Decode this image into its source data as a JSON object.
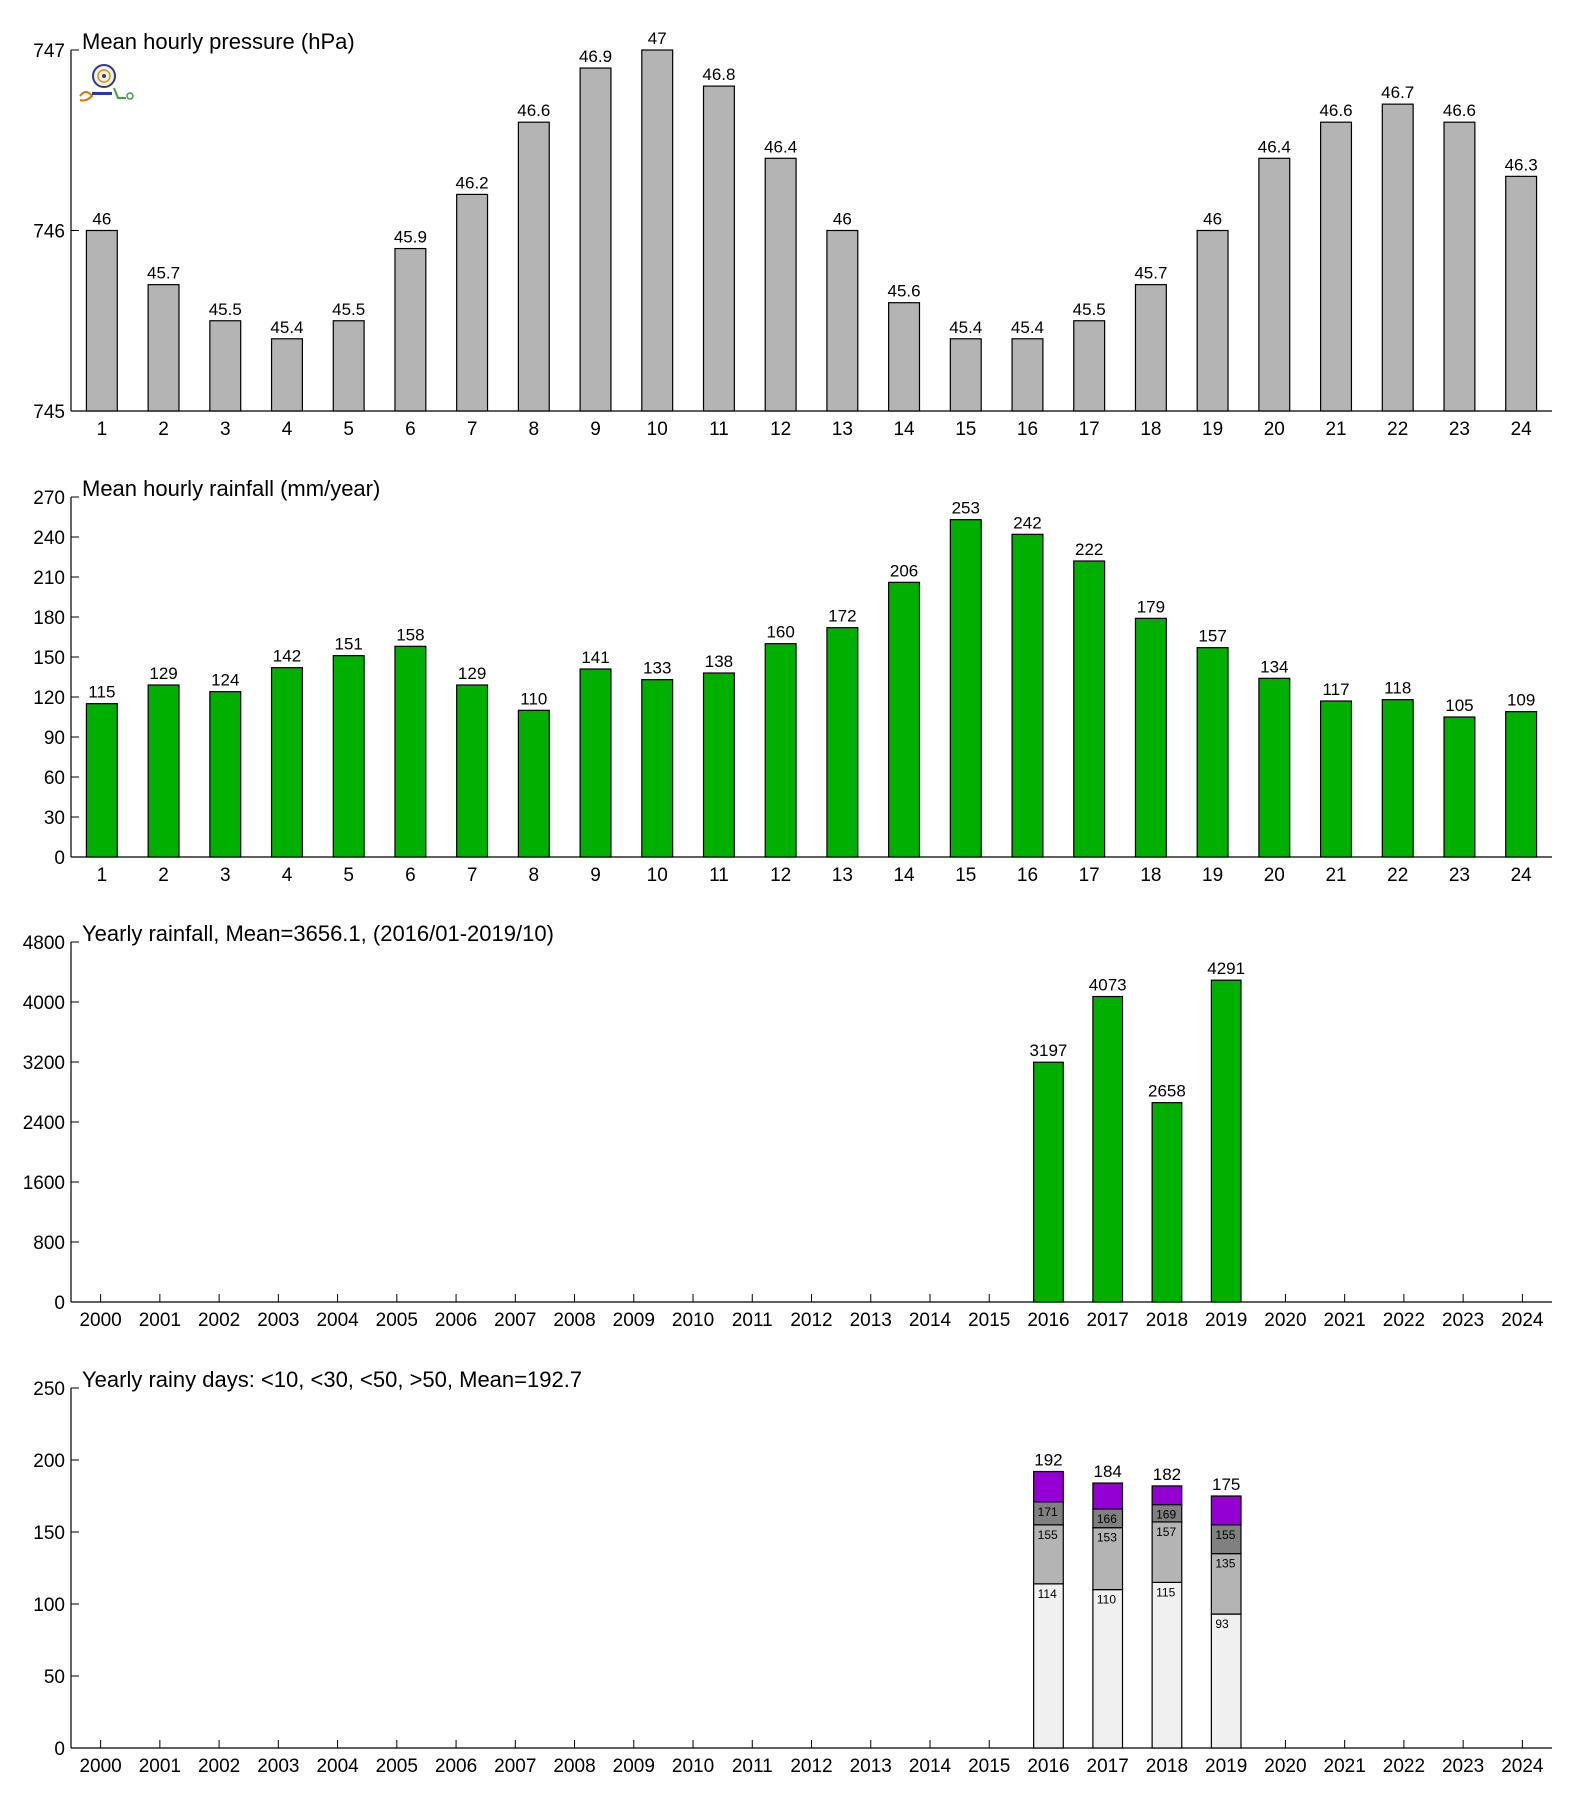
{
  "chart_data": [
    {
      "type": "bar",
      "title": "Mean hourly pressure (hPa)",
      "categories": [
        "1",
        "2",
        "3",
        "4",
        "5",
        "6",
        "7",
        "8",
        "9",
        "10",
        "11",
        "12",
        "13",
        "14",
        "15",
        "16",
        "17",
        "18",
        "19",
        "20",
        "21",
        "22",
        "23",
        "24"
      ],
      "values": [
        746.0,
        745.7,
        745.5,
        745.4,
        745.5,
        745.9,
        746.2,
        746.6,
        746.9,
        747.0,
        746.8,
        746.4,
        746.0,
        745.6,
        745.4,
        745.4,
        745.5,
        745.7,
        746.0,
        746.4,
        746.6,
        746.7,
        746.6,
        746.3
      ],
      "value_labels": [
        "46",
        "45.7",
        "45.5",
        "45.4",
        "45.5",
        "45.9",
        "46.2",
        "46.6",
        "46.9",
        "47",
        "46.8",
        "46.4",
        "46",
        "45.6",
        "45.4",
        "45.4",
        "45.5",
        "45.7",
        "46",
        "46.4",
        "46.6",
        "46.7",
        "46.6",
        "46.3"
      ],
      "ylim": [
        745,
        747
      ],
      "yticks": [
        745,
        746,
        747
      ],
      "color": "#b4b4b4"
    },
    {
      "type": "bar",
      "title": "Mean hourly rainfall (mm/year)",
      "categories": [
        "1",
        "2",
        "3",
        "4",
        "5",
        "6",
        "7",
        "8",
        "9",
        "10",
        "11",
        "12",
        "13",
        "14",
        "15",
        "16",
        "17",
        "18",
        "19",
        "20",
        "21",
        "22",
        "23",
        "24"
      ],
      "values": [
        115,
        129,
        124,
        142,
        151,
        158,
        129,
        110,
        141,
        133,
        138,
        160,
        172,
        206,
        253,
        242,
        222,
        179,
        157,
        134,
        117,
        118,
        105,
        109
      ],
      "ylim": [
        0,
        270
      ],
      "yticks": [
        0,
        30,
        60,
        90,
        120,
        150,
        180,
        210,
        240,
        270
      ],
      "color": "#00b000"
    },
    {
      "type": "bar",
      "title": "Yearly rainfall, Mean=3656.1, (2016/01-2019/10)",
      "categories": [
        "2000",
        "2001",
        "2002",
        "2003",
        "2004",
        "2005",
        "2006",
        "2007",
        "2008",
        "2009",
        "2010",
        "2011",
        "2012",
        "2013",
        "2014",
        "2015",
        "2016",
        "2017",
        "2018",
        "2019",
        "2020",
        "2021",
        "2022",
        "2023",
        "2024"
      ],
      "values": [
        null,
        null,
        null,
        null,
        null,
        null,
        null,
        null,
        null,
        null,
        null,
        null,
        null,
        null,
        null,
        null,
        3197,
        4073,
        2658,
        4291,
        null,
        null,
        null,
        null,
        null
      ],
      "ylim": [
        0,
        4800
      ],
      "yticks": [
        0,
        800,
        1600,
        2400,
        3200,
        4000,
        4800
      ],
      "color": "#00b000"
    },
    {
      "type": "stacked_bar",
      "title": "Yearly rainy days: <10, <30, <50, >50, Mean=192.7",
      "categories": [
        "2000",
        "2001",
        "2002",
        "2003",
        "2004",
        "2005",
        "2006",
        "2007",
        "2008",
        "2009",
        "2010",
        "2011",
        "2012",
        "2013",
        "2014",
        "2015",
        "2016",
        "2017",
        "2018",
        "2019",
        "2020",
        "2021",
        "2022",
        "2023",
        "2024"
      ],
      "ylim": [
        0,
        250
      ],
      "yticks": [
        0,
        50,
        100,
        150,
        200,
        250
      ],
      "cumulative": {
        "2016": [
          114,
          155,
          171,
          192
        ],
        "2017": [
          110,
          153,
          166,
          184
        ],
        "2018": [
          115,
          157,
          169,
          182
        ],
        "2019": [
          93,
          135,
          155,
          175
        ]
      },
      "colors": [
        "#f0f0f0",
        "#b4b4b4",
        "#808080",
        "#9400d3"
      ]
    }
  ]
}
